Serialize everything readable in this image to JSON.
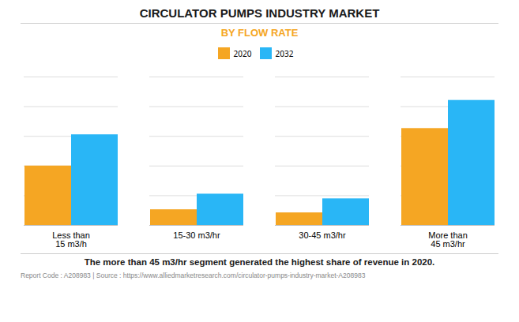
{
  "chart_data": {
    "type": "bar",
    "title": "CIRCULATOR PUMPS INDUSTRY MARKET",
    "subtitle": "BY FLOW RATE",
    "subtitle_color": "#F5A623",
    "categories": [
      "Less than\n15 m3/h",
      "15-30 m3/hr",
      "30-45 m3/hr",
      "More than\n45 m3/hr"
    ],
    "series": [
      {
        "name": "2020",
        "color": "#F5A623",
        "values": [
          0.38,
          0.1,
          0.08,
          0.62
        ]
      },
      {
        "name": "2032",
        "color": "#29B6F6",
        "values": [
          0.58,
          0.2,
          0.17,
          0.8
        ]
      }
    ],
    "ylim": [
      0,
      0.95
    ],
    "yticks": [
      0,
      0.19,
      0.38,
      0.57,
      0.76,
      0.95
    ],
    "grid": true,
    "tick_labels": "x",
    "legend": "top",
    "footnote": "The more than 45 m3/hr segment generated the highest share of revenue in 2020.",
    "source": "Report Code : A208983  |  Source : https://www.alliedmarketresearch.com/circulator-pumps-industry-market-A208983"
  }
}
